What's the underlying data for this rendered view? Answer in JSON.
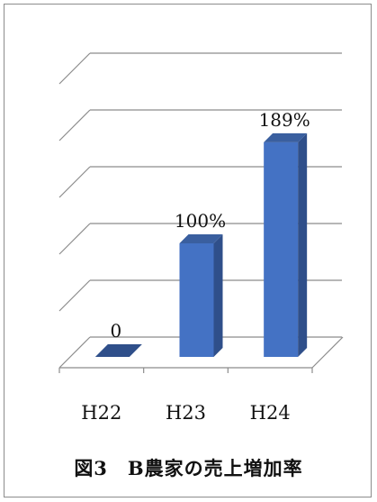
{
  "chart_data": {
    "type": "bar",
    "categories": [
      "H22",
      "H23",
      "H24"
    ],
    "values": [
      0,
      100,
      189
    ],
    "data_labels": [
      "0",
      "100%",
      "189%"
    ],
    "ylim": [
      0,
      250
    ],
    "grid": true,
    "legend": "none",
    "bar_color": "#4472c4",
    "gridline_color": "#8c8c8c"
  },
  "caption": "図3　B農家の売上増加率"
}
